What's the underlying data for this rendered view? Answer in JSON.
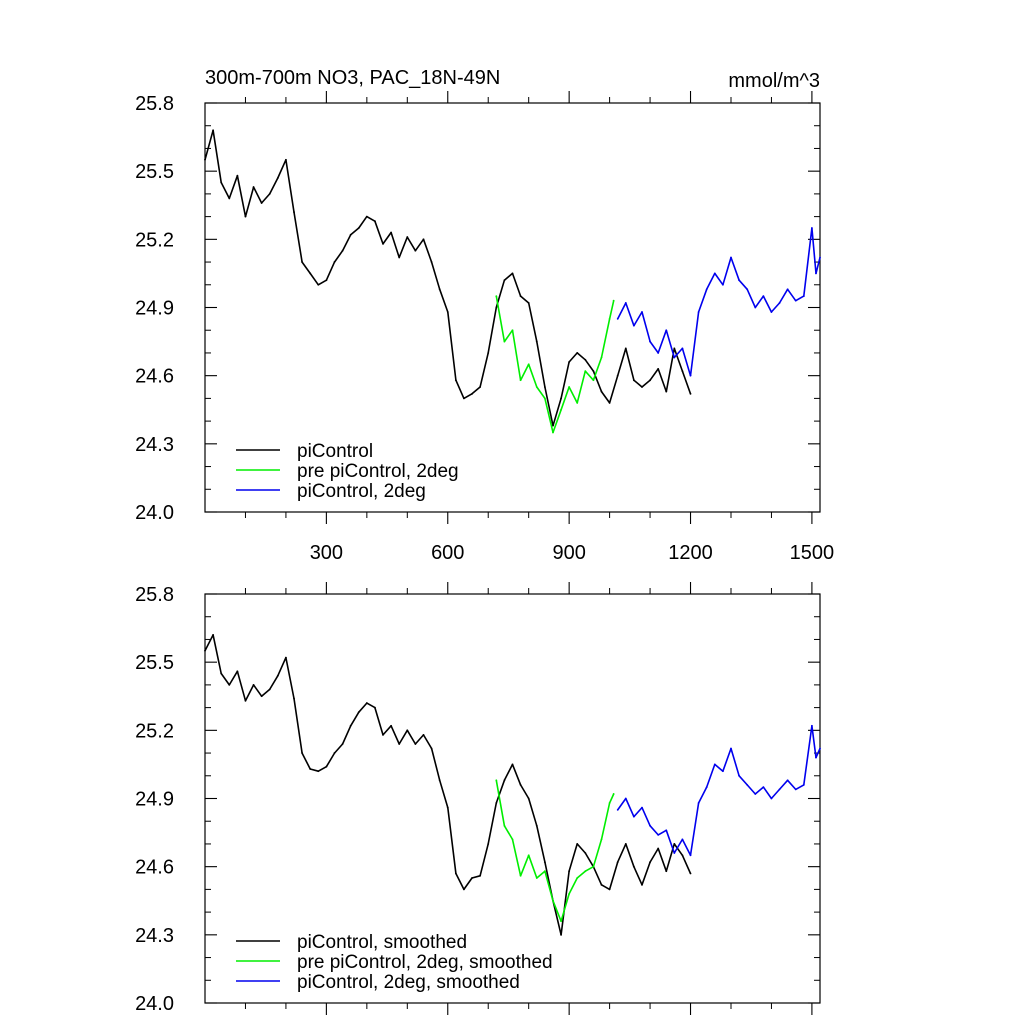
{
  "title_left": "300m-700m NO3, PAC_18N-49N",
  "title_right": "mmol/m^3",
  "colors": {
    "piControl": "#000000",
    "pre_piControl_2deg": "#00ee00",
    "piControl_2deg": "#0000ee",
    "frame": "#000000"
  },
  "chart_data": [
    {
      "type": "line",
      "panel": "top",
      "title": "300m-700m NO3, PAC_18N-49N",
      "units": "mmol/m^3",
      "xlim": [
        0,
        1520
      ],
      "ylim": [
        24.0,
        25.8
      ],
      "xticks": [
        300,
        600,
        900,
        1200,
        1500
      ],
      "xtick_labels": [
        "300",
        "600",
        "900",
        "1200",
        "1500"
      ],
      "yticks": [
        24.0,
        24.3,
        24.6,
        24.9,
        25.2,
        25.5,
        25.8
      ],
      "ytick_labels": [
        "24.0",
        "24.3",
        "24.6",
        "24.9",
        "25.2",
        "25.5",
        "25.8"
      ],
      "legend_position": "bottom-left",
      "series": [
        {
          "name": "piControl",
          "color": "#000000",
          "x": [
            0,
            20,
            40,
            60,
            80,
            100,
            120,
            140,
            160,
            180,
            200,
            220,
            240,
            260,
            280,
            300,
            320,
            340,
            360,
            380,
            400,
            420,
            440,
            460,
            480,
            500,
            520,
            540,
            560,
            580,
            600,
            620,
            640,
            660,
            680,
            700,
            720,
            740,
            760,
            780,
            800,
            820,
            840,
            860,
            880,
            900,
            920,
            940,
            960,
            980,
            1000,
            1020,
            1040,
            1060,
            1080,
            1100,
            1120,
            1140,
            1160,
            1180,
            1200
          ],
          "y": [
            25.55,
            25.68,
            25.45,
            25.38,
            25.48,
            25.3,
            25.43,
            25.36,
            25.4,
            25.47,
            25.55,
            25.32,
            25.1,
            25.05,
            25.0,
            25.02,
            25.1,
            25.15,
            25.22,
            25.25,
            25.3,
            25.28,
            25.18,
            25.23,
            25.12,
            25.21,
            25.15,
            25.2,
            25.1,
            24.98,
            24.88,
            24.58,
            24.5,
            24.52,
            24.55,
            24.7,
            24.9,
            25.02,
            25.05,
            24.95,
            24.92,
            24.75,
            24.55,
            24.38,
            24.5,
            24.66,
            24.7,
            24.67,
            24.62,
            24.53,
            24.48,
            24.6,
            24.72,
            24.58,
            24.55,
            24.58,
            24.63,
            24.53,
            24.72,
            24.62,
            24.52
          ]
        },
        {
          "name": "pre piControl, 2deg",
          "color": "#00ee00",
          "x": [
            720,
            740,
            760,
            780,
            800,
            820,
            840,
            860,
            880,
            900,
            920,
            940,
            960,
            980,
            1000,
            1010
          ],
          "y": [
            24.95,
            24.75,
            24.8,
            24.58,
            24.65,
            24.55,
            24.5,
            24.35,
            24.45,
            24.55,
            24.48,
            24.62,
            24.58,
            24.68,
            24.85,
            24.93
          ]
        },
        {
          "name": "piControl, 2deg",
          "color": "#0000ee",
          "x": [
            1020,
            1040,
            1060,
            1080,
            1100,
            1120,
            1140,
            1160,
            1180,
            1200,
            1220,
            1240,
            1260,
            1280,
            1300,
            1320,
            1340,
            1360,
            1380,
            1400,
            1420,
            1440,
            1460,
            1480,
            1500,
            1510,
            1520
          ],
          "y": [
            24.85,
            24.92,
            24.82,
            24.88,
            24.75,
            24.7,
            24.8,
            24.68,
            24.72,
            24.6,
            24.88,
            24.98,
            25.05,
            25.0,
            25.12,
            25.02,
            24.98,
            24.9,
            24.95,
            24.88,
            24.92,
            24.98,
            24.93,
            24.95,
            25.25,
            25.05,
            25.12
          ]
        }
      ]
    },
    {
      "type": "line",
      "panel": "bottom",
      "xlim": [
        0,
        1520
      ],
      "ylim": [
        24.0,
        25.8
      ],
      "xticks": [
        300,
        600,
        900,
        1200,
        1500
      ],
      "yticks": [
        24.0,
        24.3,
        24.6,
        24.9,
        25.2,
        25.5,
        25.8
      ],
      "ytick_labels": [
        "24.0",
        "24.3",
        "24.6",
        "24.9",
        "25.2",
        "25.5",
        "25.8"
      ],
      "legend_position": "bottom-left",
      "series": [
        {
          "name": "piControl, smoothed",
          "color": "#000000",
          "x": [
            0,
            20,
            40,
            60,
            80,
            100,
            120,
            140,
            160,
            180,
            200,
            220,
            240,
            260,
            280,
            300,
            320,
            340,
            360,
            380,
            400,
            420,
            440,
            460,
            480,
            500,
            520,
            540,
            560,
            580,
            600,
            620,
            640,
            660,
            680,
            700,
            720,
            740,
            760,
            780,
            800,
            820,
            840,
            860,
            880,
            900,
            920,
            940,
            960,
            980,
            1000,
            1020,
            1040,
            1060,
            1080,
            1100,
            1120,
            1140,
            1160,
            1180,
            1200
          ],
          "y": [
            25.55,
            25.62,
            25.45,
            25.4,
            25.46,
            25.33,
            25.4,
            25.35,
            25.38,
            25.44,
            25.52,
            25.34,
            25.1,
            25.03,
            25.02,
            25.04,
            25.1,
            25.14,
            25.22,
            25.28,
            25.32,
            25.3,
            25.18,
            25.22,
            25.14,
            25.2,
            25.14,
            25.18,
            25.12,
            24.98,
            24.86,
            24.57,
            24.5,
            24.55,
            24.56,
            24.7,
            24.88,
            24.98,
            25.05,
            24.96,
            24.9,
            24.78,
            24.62,
            24.45,
            24.3,
            24.58,
            24.7,
            24.66,
            24.6,
            24.52,
            24.5,
            24.62,
            24.7,
            24.6,
            24.52,
            24.62,
            24.68,
            24.58,
            24.7,
            24.65,
            24.57
          ]
        },
        {
          "name": "pre piControl, 2deg, smoothed",
          "color": "#00ee00",
          "x": [
            720,
            740,
            760,
            780,
            800,
            820,
            840,
            860,
            880,
            900,
            920,
            940,
            960,
            980,
            1000,
            1010
          ],
          "y": [
            24.98,
            24.78,
            24.72,
            24.56,
            24.65,
            24.55,
            24.58,
            24.45,
            24.36,
            24.48,
            24.55,
            24.58,
            24.6,
            24.72,
            24.88,
            24.92
          ]
        },
        {
          "name": "piControl, 2deg, smoothed",
          "color": "#0000ee",
          "x": [
            1020,
            1040,
            1060,
            1080,
            1100,
            1120,
            1140,
            1160,
            1180,
            1200,
            1220,
            1240,
            1260,
            1280,
            1300,
            1320,
            1340,
            1360,
            1380,
            1400,
            1420,
            1440,
            1460,
            1480,
            1500,
            1510,
            1520
          ],
          "y": [
            24.85,
            24.9,
            24.82,
            24.86,
            24.78,
            24.74,
            24.76,
            24.66,
            24.72,
            24.65,
            24.88,
            24.95,
            25.05,
            25.02,
            25.12,
            25.0,
            24.96,
            24.92,
            24.95,
            24.9,
            24.94,
            24.98,
            24.94,
            24.96,
            25.22,
            25.08,
            25.12
          ]
        }
      ]
    }
  ]
}
